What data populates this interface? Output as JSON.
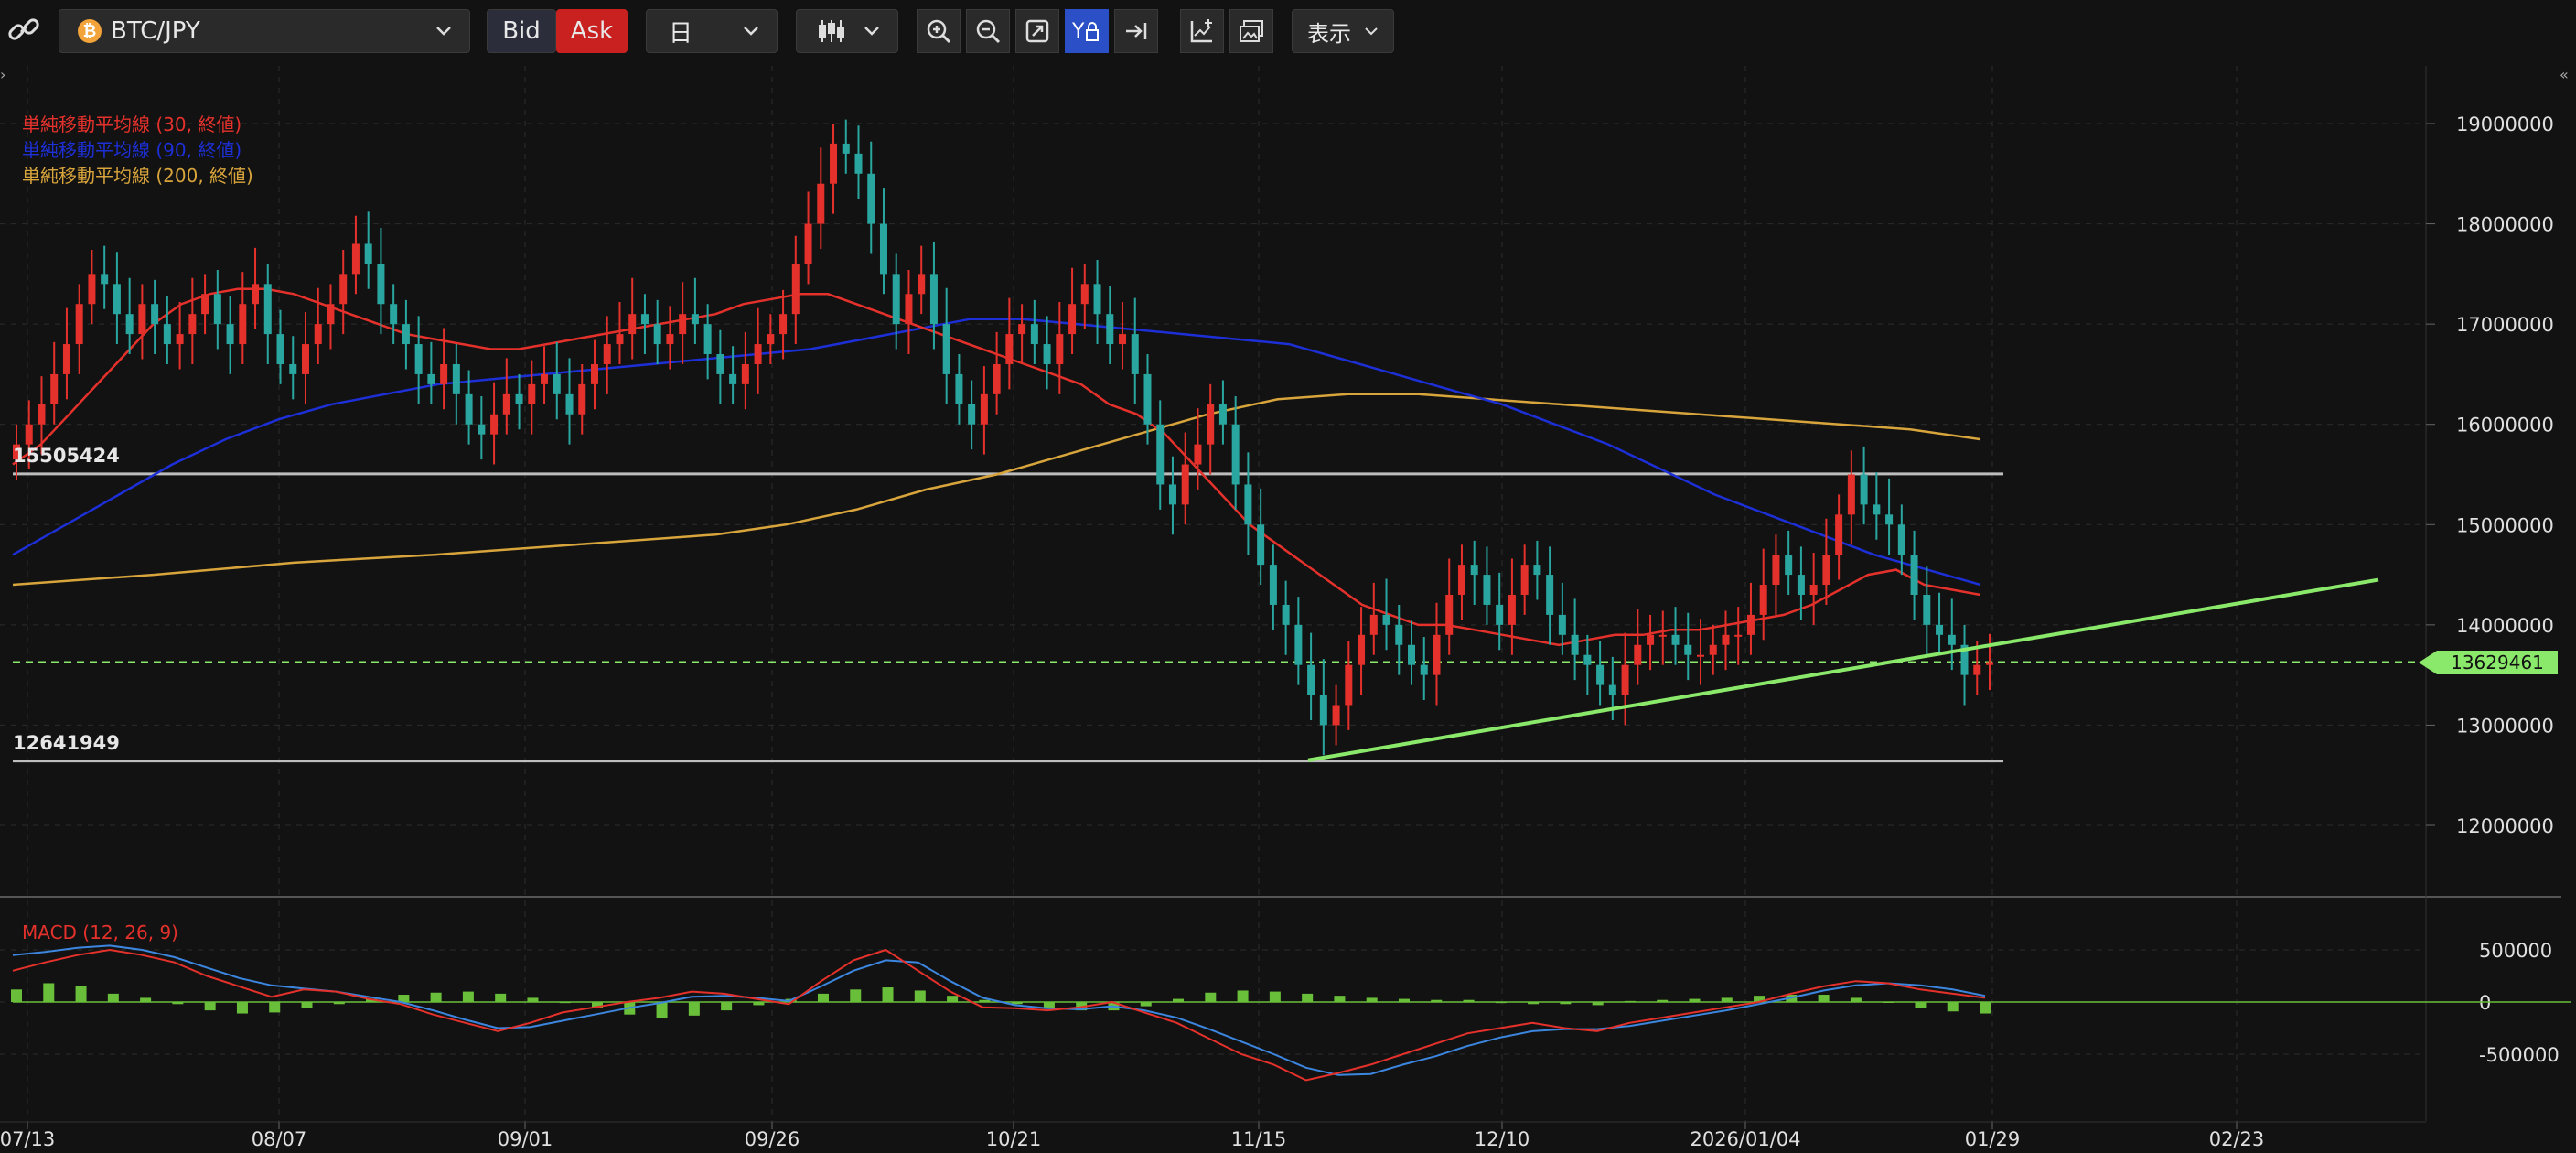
{
  "toolbar": {
    "symbol": "BTC/JPY",
    "bid_label": "Bid",
    "ask_label": "Ask",
    "timeframe": "日",
    "display_label": "表示"
  },
  "indicators": {
    "sma30": "単純移動平均線 (30, 終値)",
    "sma90": "単純移動平均線 (90, 終値)",
    "sma200": "単純移動平均線 (200, 終値)",
    "macd": "MACD (12, 26, 9)"
  },
  "horizontal_lines": {
    "upper_label": "15505424",
    "lower_label": "12641949"
  },
  "current_price_label": "13629461",
  "colors": {
    "bull": "#e5312b",
    "bear": "#2aa6a0",
    "sma30": "#e5312b",
    "sma90": "#1d2fd6",
    "sma200": "#d8a43c",
    "trend": "#8ae86a",
    "macd": "#e5312b",
    "signal": "#3c86e0",
    "hist": "#6abf3a"
  },
  "chart_data": {
    "type": "candlestick",
    "price_axis_ticks": [
      "19000000",
      "18000000",
      "17000000",
      "16000000",
      "15000000",
      "14000000",
      "13000000",
      "12000000"
    ],
    "macd_axis_ticks": [
      "500000",
      "0",
      "-500000"
    ],
    "x_tick_labels": [
      "07/13",
      "08/07",
      "09/01",
      "09/26",
      "10/21",
      "11/15",
      "12/10",
      "2026/01/04",
      "01/29",
      "02/23"
    ],
    "ylim": [
      11300000,
      19500000
    ],
    "upper_line": 15505424,
    "lower_line": 12641949,
    "current_price": 13629461,
    "trendline": {
      "start": [
        "11/20",
        12650000
      ],
      "end": [
        "02/28",
        14450000
      ]
    },
    "close": [
      15800000,
      16000000,
      16200000,
      16500000,
      16800000,
      17200000,
      17500000,
      17400000,
      17100000,
      16900000,
      17200000,
      17000000,
      16800000,
      16900000,
      17100000,
      17300000,
      17000000,
      16800000,
      17200000,
      17400000,
      16900000,
      16600000,
      16500000,
      16800000,
      17000000,
      17200000,
      17500000,
      17800000,
      17600000,
      17200000,
      17000000,
      16800000,
      16500000,
      16400000,
      16600000,
      16300000,
      16000000,
      15900000,
      16100000,
      16300000,
      16200000,
      16400000,
      16500000,
      16300000,
      16100000,
      16400000,
      16600000,
      16800000,
      16900000,
      17100000,
      17000000,
      16800000,
      16900000,
      17100000,
      17000000,
      16700000,
      16500000,
      16400000,
      16600000,
      16800000,
      16900000,
      17100000,
      17600000,
      18000000,
      18400000,
      18800000,
      18700000,
      18500000,
      18000000,
      17500000,
      17000000,
      17300000,
      17500000,
      17000000,
      16500000,
      16200000,
      16000000,
      16300000,
      16600000,
      16900000,
      17000000,
      16800000,
      16600000,
      16900000,
      17200000,
      17400000,
      17100000,
      16800000,
      16900000,
      16500000,
      16000000,
      15400000,
      15200000,
      15600000,
      15800000,
      16200000,
      16000000,
      15400000,
      15000000,
      14600000,
      14200000,
      14000000,
      13600000,
      13300000,
      13000000,
      13200000,
      13600000,
      13900000,
      14100000,
      14000000,
      13800000,
      13600000,
      13500000,
      13900000,
      14300000,
      14600000,
      14500000,
      14200000,
      14000000,
      14300000,
      14600000,
      14500000,
      14100000,
      13900000,
      13700000,
      13600000,
      13400000,
      13300000,
      13600000,
      13800000,
      13900000,
      13900000,
      13800000,
      13700000,
      13700000,
      13800000,
      13900000,
      13900000,
      14100000,
      14400000,
      14700000,
      14500000,
      14300000,
      14400000,
      14700000,
      15100000,
      15500000,
      15200000,
      15100000,
      15000000,
      14700000,
      14300000,
      14000000,
      13900000,
      13800000,
      13500000,
      13600000,
      13629461
    ],
    "sma30": [
      15600000,
      15800000,
      16100000,
      16400000,
      16700000,
      17000000,
      17200000,
      17300000,
      17350000,
      17350000,
      17300000,
      17200000,
      17100000,
      17000000,
      16900000,
      16850000,
      16800000,
      16750000,
      16750000,
      16800000,
      16850000,
      16900000,
      16950000,
      17000000,
      17050000,
      17100000,
      17200000,
      17250000,
      17300000,
      17300000,
      17200000,
      17100000,
      17000000,
      16900000,
      16800000,
      16700000,
      16600000,
      16500000,
      16400000,
      16200000,
      16100000,
      15900000,
      15600000,
      15300000,
      15000000,
      14800000,
      14600000,
      14400000,
      14200000,
      14100000,
      14000000,
      14000000,
      13950000,
      13900000,
      13850000,
      13800000,
      13850000,
      13900000,
      13900000,
      13950000,
      13950000,
      14000000,
      14050000,
      14100000,
      14200000,
      14350000,
      14500000,
      14550000,
      14400000,
      14350000,
      14300000
    ],
    "sma90": [
      14700000,
      15000000,
      15300000,
      15600000,
      15850000,
      16050000,
      16200000,
      16300000,
      16400000,
      16450000,
      16500000,
      16550000,
      16600000,
      16650000,
      16700000,
      16750000,
      16850000,
      16950000,
      17050000,
      17050000,
      17000000,
      16950000,
      16900000,
      16850000,
      16800000,
      16650000,
      16500000,
      16350000,
      16200000,
      16000000,
      15800000,
      15550000,
      15300000,
      15100000,
      14900000,
      14700000,
      14550000,
      14400000
    ],
    "sma200": [
      14400000,
      14450000,
      14500000,
      14560000,
      14620000,
      14660000,
      14700000,
      14750000,
      14800000,
      14850000,
      14900000,
      15000000,
      15150000,
      15350000,
      15500000,
      15700000,
      15900000,
      16100000,
      16250000,
      16300000,
      16300000,
      16250000,
      16200000,
      16150000,
      16100000,
      16050000,
      16000000,
      15950000,
      15850000
    ],
    "macd_line": [
      300000,
      380000,
      450000,
      500000,
      450000,
      380000,
      250000,
      150000,
      50000,
      120000,
      100000,
      30000,
      -20000,
      -120000,
      -200000,
      -280000,
      -200000,
      -100000,
      -50000,
      0,
      40000,
      100000,
      80000,
      30000,
      -20000,
      200000,
      400000,
      500000,
      300000,
      100000,
      -50000,
      -60000,
      -80000,
      -50000,
      0,
      -100000,
      -200000,
      -350000,
      -500000,
      -600000,
      -750000,
      -680000,
      -600000,
      -500000,
      -400000,
      -300000,
      -250000,
      -200000,
      -250000,
      -280000,
      -200000,
      -150000,
      -100000,
      -50000,
      0,
      80000,
      150000,
      200000,
      180000,
      120000,
      80000,
      40000
    ],
    "signal_line": [
      450000,
      480000,
      520000,
      540000,
      500000,
      430000,
      330000,
      230000,
      160000,
      130000,
      100000,
      50000,
      0,
      -80000,
      -170000,
      -250000,
      -240000,
      -180000,
      -120000,
      -60000,
      -10000,
      50000,
      60000,
      40000,
      10000,
      150000,
      300000,
      400000,
      380000,
      200000,
      40000,
      -30000,
      -60000,
      -70000,
      -40000,
      -80000,
      -150000,
      -260000,
      -380000,
      -500000,
      -630000,
      -700000,
      -690000,
      -600000,
      -520000,
      -420000,
      -340000,
      -280000,
      -260000,
      -260000,
      -230000,
      -180000,
      -130000,
      -80000,
      -20000,
      40000,
      110000,
      160000,
      180000,
      160000,
      120000,
      60000
    ],
    "histogram": [
      120000,
      180000,
      150000,
      80000,
      40000,
      -20000,
      -80000,
      -110000,
      -100000,
      -60000,
      -20000,
      30000,
      70000,
      90000,
      100000,
      80000,
      40000,
      -10000,
      -60000,
      -120000,
      -150000,
      -130000,
      -80000,
      -30000,
      30000,
      80000,
      120000,
      140000,
      110000,
      60000,
      20000,
      -20000,
      -60000,
      -80000,
      -80000,
      -40000,
      30000,
      90000,
      110000,
      100000,
      80000,
      60000,
      40000,
      30000,
      20000,
      20000,
      -10000,
      -20000,
      -20000,
      -30000,
      10000,
      20000,
      30000,
      40000,
      60000,
      70000,
      70000,
      40000,
      0,
      -60000,
      -90000,
      -110000
    ]
  }
}
